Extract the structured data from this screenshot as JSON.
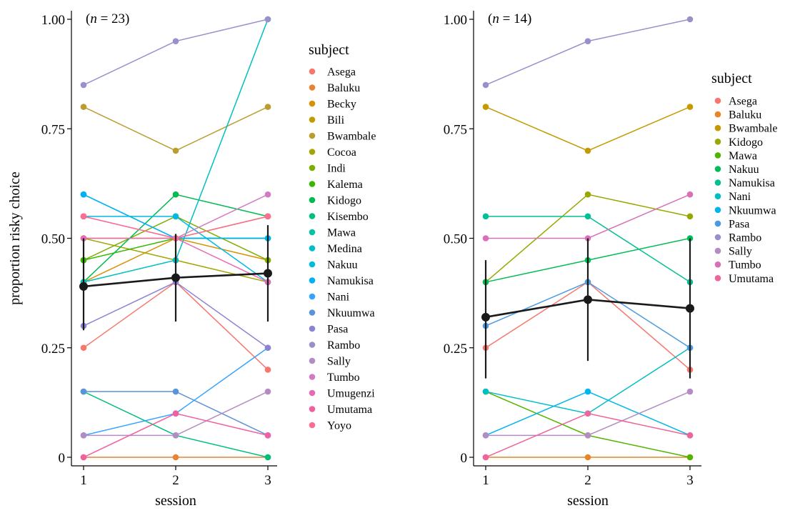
{
  "chart_data": [
    {
      "type": "line",
      "note": "(n = 23)",
      "xlabel": "session",
      "ylabel": "proportion risky choice",
      "x_ticks": [
        "1",
        "2",
        "3"
      ],
      "y_ticks": [
        "0",
        "0.25",
        "0.50",
        "0.75",
        "1.00"
      ],
      "ylim": [
        0,
        1
      ],
      "legend_title": "subject",
      "legend_position": "right",
      "x": [
        1,
        2,
        3
      ],
      "series": [
        {
          "name": "Asega",
          "color": "#F8766D",
          "values": [
            0.25,
            0.4,
            0.2
          ]
        },
        {
          "name": "Baluku",
          "color": "#EA8331",
          "values": [
            0.0,
            0.0,
            0.0
          ]
        },
        {
          "name": "Becky",
          "color": "#D89000",
          "values": [
            0.4,
            0.5,
            0.45
          ]
        },
        {
          "name": "Bili",
          "color": "#C09B00",
          "values": [
            0.5,
            0.5,
            0.55
          ]
        },
        {
          "name": "Bwambale",
          "color": "#BB9D2F",
          "values": [
            0.8,
            0.7,
            0.8
          ]
        },
        {
          "name": "Cocoa",
          "color": "#A3A500",
          "values": [
            0.5,
            0.45,
            0.4
          ]
        },
        {
          "name": "Indi",
          "color": "#7CAE00",
          "values": [
            0.45,
            0.55,
            0.45
          ]
        },
        {
          "name": "Kalema",
          "color": "#39B600",
          "values": [
            0.45,
            0.5,
            0.5
          ]
        },
        {
          "name": "Kidogo",
          "color": "#00BB4E",
          "values": [
            0.4,
            0.6,
            0.55
          ]
        },
        {
          "name": "Kisembo",
          "color": "#00BF7D",
          "values": [
            0.15,
            0.05,
            0.0
          ]
        },
        {
          "name": "Mawa",
          "color": "#00C1A3",
          "values": [
            0.6,
            0.5,
            0.5
          ]
        },
        {
          "name": "Medina",
          "color": "#00BFC4",
          "values": [
            0.4,
            0.45,
            1.0
          ]
        },
        {
          "name": "Nakuu",
          "color": "#00BAE0",
          "values": [
            0.55,
            0.55,
            0.4
          ]
        },
        {
          "name": "Namukisa",
          "color": "#00B0F6",
          "values": [
            0.6,
            0.5,
            0.5
          ]
        },
        {
          "name": "Nani",
          "color": "#35A2FF",
          "values": [
            0.05,
            0.1,
            0.25
          ]
        },
        {
          "name": "Nkuumwa",
          "color": "#5B93D9",
          "values": [
            0.15,
            0.15,
            0.05
          ]
        },
        {
          "name": "Pasa",
          "color": "#8B84D3",
          "values": [
            0.3,
            0.4,
            0.25
          ]
        },
        {
          "name": "Rambo",
          "color": "#9B8FCB",
          "values": [
            0.85,
            0.95,
            1.0
          ]
        },
        {
          "name": "Sally",
          "color": "#B28CC2",
          "values": [
            0.05,
            0.05,
            0.15
          ]
        },
        {
          "name": "Tumbo",
          "color": "#D27BC4",
          "values": [
            0.55,
            0.5,
            0.6
          ]
        },
        {
          "name": "Umugenzi",
          "color": "#E76BB4",
          "values": [
            0.5,
            0.5,
            0.4
          ]
        },
        {
          "name": "Umutama",
          "color": "#F25FA0",
          "values": [
            0.0,
            0.1,
            0.05
          ]
        },
        {
          "name": "Yoyo",
          "color": "#FF6C91",
          "values": [
            0.55,
            0.5,
            0.55
          ]
        }
      ],
      "mean": {
        "color": "#1a1a1a",
        "values": [
          0.39,
          0.41,
          0.42
        ],
        "lower": [
          0.29,
          0.31,
          0.31
        ],
        "upper": [
          0.5,
          0.51,
          0.53
        ]
      }
    },
    {
      "type": "line",
      "note": "(n = 14)",
      "xlabel": "session",
      "ylabel": "",
      "x_ticks": [
        "1",
        "2",
        "3"
      ],
      "y_ticks": [
        "0",
        "0.25",
        "0.50",
        "0.75",
        "1.00"
      ],
      "ylim": [
        0,
        1
      ],
      "legend_title": "subject",
      "legend_position": "right",
      "x": [
        1,
        2,
        3
      ],
      "series": [
        {
          "name": "Asega",
          "color": "#F8766D",
          "values": [
            0.25,
            0.4,
            0.2
          ]
        },
        {
          "name": "Baluku",
          "color": "#E88526",
          "values": [
            0.0,
            0.0,
            0.0
          ]
        },
        {
          "name": "Bwambale",
          "color": "#C49A00",
          "values": [
            0.8,
            0.7,
            0.8
          ]
        },
        {
          "name": "Kidogo",
          "color": "#99A800",
          "values": [
            0.4,
            0.6,
            0.55
          ]
        },
        {
          "name": "Mawa",
          "color": "#53B400",
          "values": [
            0.15,
            0.05,
            0.0
          ]
        },
        {
          "name": "Nakuu",
          "color": "#00BC56",
          "values": [
            0.4,
            0.45,
            0.5
          ]
        },
        {
          "name": "Namukisa",
          "color": "#00C094",
          "values": [
            0.55,
            0.55,
            0.4
          ]
        },
        {
          "name": "Nani",
          "color": "#00BFC4",
          "values": [
            0.15,
            0.1,
            0.25
          ]
        },
        {
          "name": "Nkuumwa",
          "color": "#00B6EB",
          "values": [
            0.05,
            0.15,
            0.05
          ]
        },
        {
          "name": "Pasa",
          "color": "#4A9AE0",
          "values": [
            0.3,
            0.4,
            0.25
          ]
        },
        {
          "name": "Rambo",
          "color": "#9B8FCB",
          "values": [
            0.85,
            0.95,
            1.0
          ]
        },
        {
          "name": "Sally",
          "color": "#B28CC2",
          "values": [
            0.05,
            0.05,
            0.15
          ]
        },
        {
          "name": "Tumbo",
          "color": "#D870B8",
          "values": [
            0.5,
            0.5,
            0.6
          ]
        },
        {
          "name": "Umutama",
          "color": "#F0649B",
          "values": [
            0.0,
            0.1,
            0.05
          ]
        }
      ],
      "mean": {
        "color": "#1a1a1a",
        "values": [
          0.32,
          0.36,
          0.34
        ],
        "lower": [
          0.18,
          0.22,
          0.18
        ],
        "upper": [
          0.45,
          0.5,
          0.5
        ]
      }
    }
  ]
}
